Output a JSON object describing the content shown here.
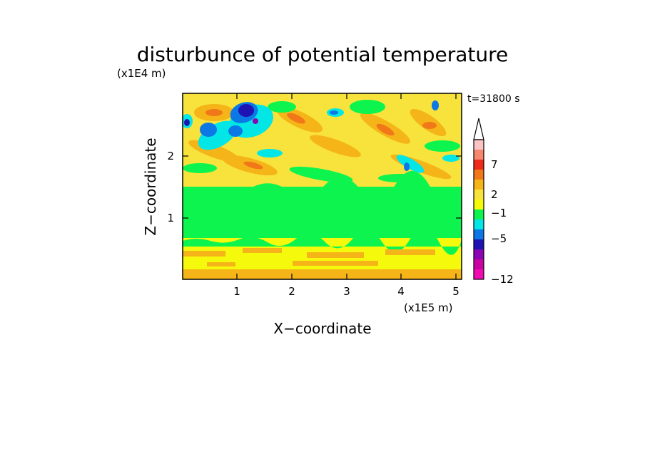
{
  "chart_data": {
    "type": "heatmap",
    "title": "disturbunce of potential temperature",
    "time_label": "t=31800 s",
    "xlabel": "X−coordinate",
    "ylabel": "Z−coordinate",
    "x_unit": "(x1E5 m)",
    "y_unit": "(x1E4 m)",
    "xlim": [
      0,
      5.15
    ],
    "ylim": [
      0,
      2.98
    ],
    "x_ticks": [
      "1",
      "2",
      "3",
      "4",
      "5"
    ],
    "y_ticks": [
      "1",
      "2"
    ],
    "colorbar_labels": [
      "7",
      "2",
      "−1",
      "−5",
      "−12"
    ],
    "colorbar_colors": [
      "#fbc3c3",
      "#f5876f",
      "#ee2a18",
      "#f07818",
      "#f5b418",
      "#f8e23c",
      "#f5fa0c",
      "#0ef44e",
      "#02e6e6",
      "#0b78e6",
      "#1e14b4",
      "#8c05b4",
      "#c805a0",
      "#f00ab4"
    ],
    "bands": [
      {
        "z": [
          0.0,
          0.6
        ],
        "value": 0.5,
        "color": "#f5fa0c"
      },
      {
        "z": [
          0.6,
          1.4
        ],
        "value": -0.5,
        "color": "#0ef44e"
      },
      {
        "z": [
          1.4,
          2.98
        ],
        "value": "mixed",
        "color": "#f8e23c"
      }
    ]
  }
}
